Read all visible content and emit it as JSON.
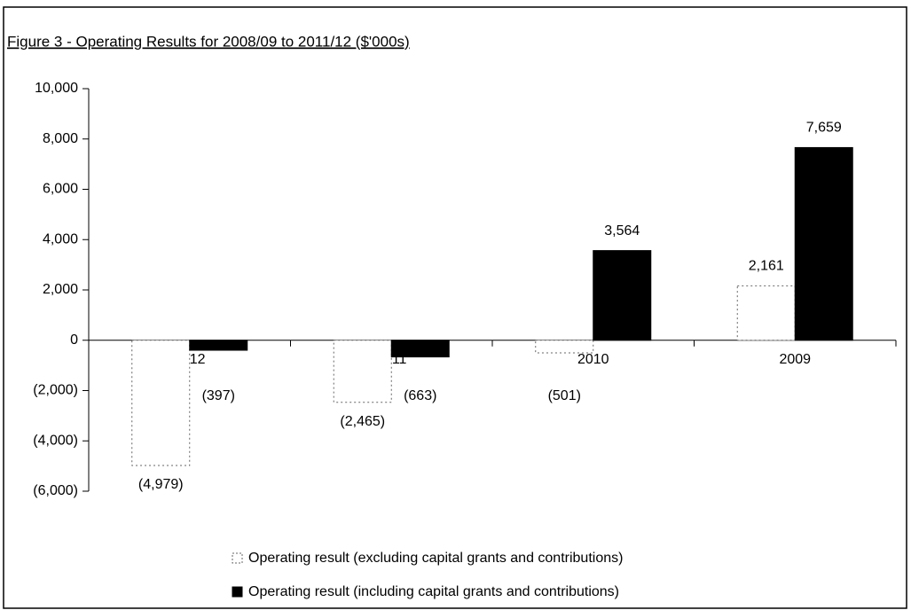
{
  "chart_data": {
    "type": "bar",
    "title": "Figure 3 - Operating Results for 2008/09 to 2011/12 ($'000s)",
    "categories": [
      "2012",
      "2011",
      "2010",
      "2009"
    ],
    "series": [
      {
        "name": "Operating result (excluding  capital grants and contributions)",
        "color": "#ffffff",
        "values": [
          -4979,
          -2465,
          -501,
          2161
        ],
        "value_labels": [
          "(4,979)",
          "(2,465)",
          "(501)",
          "2,161"
        ]
      },
      {
        "name": "Operating result (including  capital grants and contributions)",
        "color": "#000000",
        "values": [
          -397,
          -663,
          3564,
          7659
        ],
        "value_labels": [
          "(397)",
          "(663)",
          "3,564",
          "7,659"
        ]
      }
    ],
    "ylim": [
      -6000,
      10000
    ],
    "yticks": [
      {
        "value": -6000,
        "label": "(6,000)"
      },
      {
        "value": -4000,
        "label": "(4,000)"
      },
      {
        "value": -2000,
        "label": "(2,000)"
      },
      0,
      {
        "value": 2000,
        "label": "2,000"
      },
      {
        "value": 4000,
        "label": "4,000"
      },
      {
        "value": 6000,
        "label": "6,000"
      },
      {
        "value": 8000,
        "label": "8,000"
      },
      {
        "value": 10000,
        "label": "10,000"
      }
    ],
    "grid": false
  }
}
